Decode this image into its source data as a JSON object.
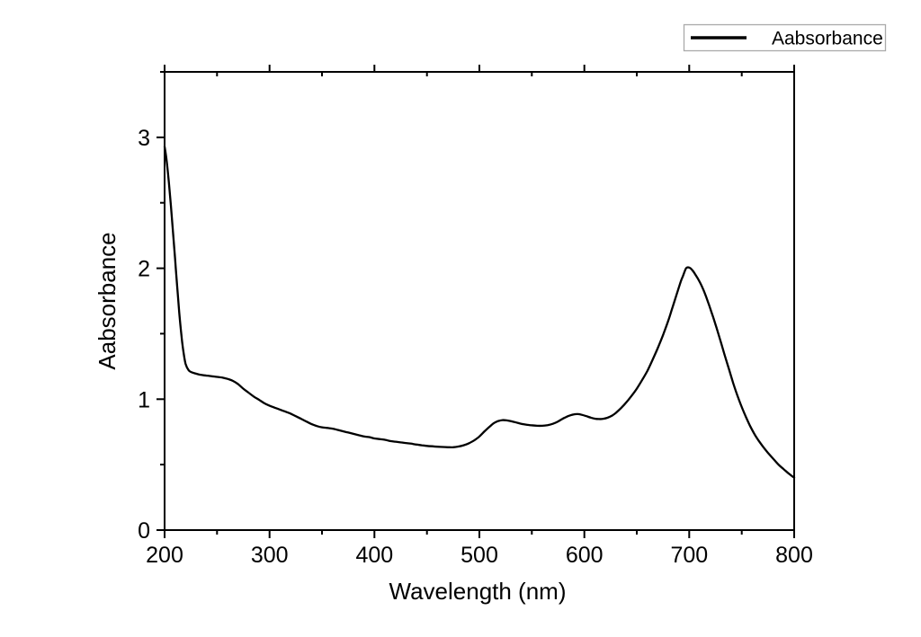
{
  "colors": {
    "background": "#ffffff",
    "line": "#000000",
    "axis": "#000000",
    "legend_border": "#aaaaaa"
  },
  "chart_data": {
    "type": "line",
    "title": "",
    "xlabel": "Wavelength (nm)",
    "ylabel": "Aabsorbance",
    "legend": [
      "Aabsorbance"
    ],
    "legend_position": "top-right-outside",
    "grid": false,
    "xlim": [
      200,
      800
    ],
    "ylim": [
      0,
      3.5
    ],
    "x_major_step": 100,
    "x_minor_step": 50,
    "y_major_step": 1,
    "y_minor_step": 0.5,
    "x_major_tick_labels": [
      "200",
      "300",
      "400",
      "500",
      "600",
      "700",
      "800"
    ],
    "y_major_tick_labels": [
      "0",
      "1",
      "2",
      "3"
    ],
    "series": [
      {
        "name": "Aabsorbance",
        "color": "#000000",
        "points": [
          [
            200,
            2.93
          ],
          [
            202,
            2.82
          ],
          [
            204,
            2.66
          ],
          [
            206,
            2.48
          ],
          [
            208,
            2.28
          ],
          [
            210,
            2.07
          ],
          [
            212,
            1.86
          ],
          [
            214,
            1.66
          ],
          [
            216,
            1.49
          ],
          [
            218,
            1.36
          ],
          [
            220,
            1.27
          ],
          [
            223,
            1.22
          ],
          [
            226,
            1.205
          ],
          [
            230,
            1.195
          ],
          [
            235,
            1.185
          ],
          [
            240,
            1.18
          ],
          [
            245,
            1.175
          ],
          [
            250,
            1.17
          ],
          [
            255,
            1.165
          ],
          [
            260,
            1.155
          ],
          [
            265,
            1.14
          ],
          [
            270,
            1.115
          ],
          [
            275,
            1.08
          ],
          [
            280,
            1.05
          ],
          [
            285,
            1.02
          ],
          [
            290,
            0.995
          ],
          [
            295,
            0.97
          ],
          [
            300,
            0.95
          ],
          [
            305,
            0.935
          ],
          [
            310,
            0.92
          ],
          [
            315,
            0.905
          ],
          [
            320,
            0.89
          ],
          [
            325,
            0.87
          ],
          [
            330,
            0.85
          ],
          [
            335,
            0.83
          ],
          [
            340,
            0.81
          ],
          [
            345,
            0.795
          ],
          [
            350,
            0.785
          ],
          [
            355,
            0.78
          ],
          [
            360,
            0.775
          ],
          [
            365,
            0.765
          ],
          [
            370,
            0.755
          ],
          [
            375,
            0.745
          ],
          [
            380,
            0.735
          ],
          [
            385,
            0.725
          ],
          [
            390,
            0.715
          ],
          [
            395,
            0.71
          ],
          [
            400,
            0.7
          ],
          [
            405,
            0.695
          ],
          [
            410,
            0.69
          ],
          [
            415,
            0.68
          ],
          [
            420,
            0.675
          ],
          [
            425,
            0.67
          ],
          [
            430,
            0.665
          ],
          [
            435,
            0.66
          ],
          [
            440,
            0.653
          ],
          [
            445,
            0.648
          ],
          [
            450,
            0.643
          ],
          [
            455,
            0.64
          ],
          [
            460,
            0.637
          ],
          [
            465,
            0.635
          ],
          [
            470,
            0.633
          ],
          [
            475,
            0.633
          ],
          [
            480,
            0.638
          ],
          [
            485,
            0.648
          ],
          [
            490,
            0.663
          ],
          [
            495,
            0.685
          ],
          [
            500,
            0.715
          ],
          [
            505,
            0.755
          ],
          [
            510,
            0.792
          ],
          [
            514,
            0.818
          ],
          [
            518,
            0.833
          ],
          [
            522,
            0.84
          ],
          [
            526,
            0.838
          ],
          [
            530,
            0.832
          ],
          [
            535,
            0.822
          ],
          [
            540,
            0.812
          ],
          [
            545,
            0.805
          ],
          [
            550,
            0.8
          ],
          [
            555,
            0.797
          ],
          [
            560,
            0.797
          ],
          [
            565,
            0.801
          ],
          [
            570,
            0.812
          ],
          [
            575,
            0.83
          ],
          [
            580,
            0.853
          ],
          [
            585,
            0.872
          ],
          [
            590,
            0.884
          ],
          [
            594,
            0.886
          ],
          [
            598,
            0.88
          ],
          [
            602,
            0.87
          ],
          [
            606,
            0.859
          ],
          [
            610,
            0.851
          ],
          [
            614,
            0.848
          ],
          [
            618,
            0.85
          ],
          [
            622,
            0.858
          ],
          [
            626,
            0.872
          ],
          [
            630,
            0.895
          ],
          [
            635,
            0.932
          ],
          [
            640,
            0.975
          ],
          [
            645,
            1.025
          ],
          [
            650,
            1.08
          ],
          [
            655,
            1.145
          ],
          [
            660,
            1.215
          ],
          [
            665,
            1.3
          ],
          [
            670,
            1.39
          ],
          [
            675,
            1.49
          ],
          [
            680,
            1.6
          ],
          [
            684,
            1.7
          ],
          [
            688,
            1.8
          ],
          [
            692,
            1.9
          ],
          [
            694,
            1.94
          ],
          [
            697,
            2.0
          ],
          [
            700,
            2.005
          ],
          [
            703,
            1.985
          ],
          [
            706,
            1.95
          ],
          [
            710,
            1.895
          ],
          [
            714,
            1.825
          ],
          [
            718,
            1.74
          ],
          [
            722,
            1.645
          ],
          [
            726,
            1.545
          ],
          [
            730,
            1.44
          ],
          [
            734,
            1.33
          ],
          [
            738,
            1.225
          ],
          [
            742,
            1.12
          ],
          [
            746,
            1.025
          ],
          [
            750,
            0.94
          ],
          [
            754,
            0.865
          ],
          [
            758,
            0.795
          ],
          [
            762,
            0.735
          ],
          [
            766,
            0.685
          ],
          [
            770,
            0.64
          ],
          [
            775,
            0.59
          ],
          [
            780,
            0.545
          ],
          [
            785,
            0.5
          ],
          [
            790,
            0.465
          ],
          [
            795,
            0.43
          ],
          [
            800,
            0.4
          ]
        ]
      }
    ]
  }
}
